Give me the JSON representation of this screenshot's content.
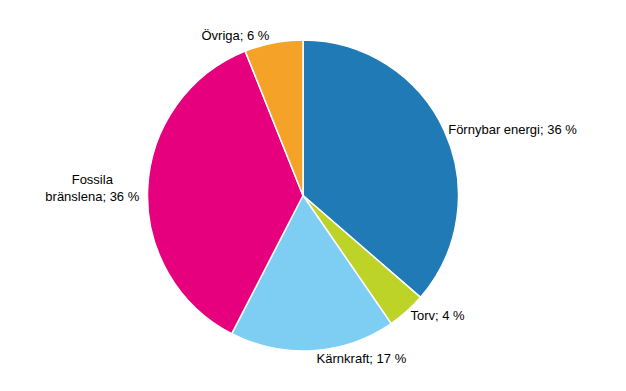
{
  "chart_data": {
    "type": "pie",
    "categories": [
      "Förnybar energi; 36 %",
      "Torv; 4 %",
      "Kärnkraft; 17 %",
      "Fossila\nbränslena; 36 %",
      "Övriga; 6 %"
    ],
    "values": [
      36,
      4,
      17,
      36,
      6
    ],
    "colors": [
      "#1f7ab5",
      "#bdd327",
      "#7ecef4",
      "#e6007e",
      "#f5a328"
    ],
    "legend": false
  }
}
